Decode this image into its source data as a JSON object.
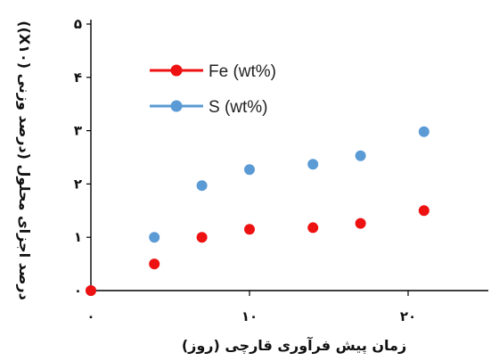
{
  "chart_data": {
    "type": "scatter",
    "xlabel": "زمان پیش فرآوری قارچی (روز)",
    "ylabel": "درصد اجزای محلول (درصد وزنی (X۱۰))",
    "x_ticks": [
      "۰",
      "۱۰",
      "۲۰"
    ],
    "y_ticks": [
      "۰",
      "۱",
      "۲",
      "۳",
      "۴",
      "۵"
    ],
    "xlim": [
      0,
      25
    ],
    "ylim": [
      0,
      5
    ],
    "grid": false,
    "legend_position": "top-left",
    "series": [
      {
        "name": "Fe (wt%)",
        "color": "#ee1111",
        "x": [
          0,
          4,
          7,
          10,
          14,
          17,
          21
        ],
        "y": [
          0,
          0.5,
          1.0,
          1.15,
          1.18,
          1.26,
          1.5
        ]
      },
      {
        "name": "S (wt%)",
        "color": "#5b9bd5",
        "x": [
          0,
          4,
          7,
          10,
          14,
          17,
          21
        ],
        "y": [
          0,
          1.0,
          1.97,
          2.27,
          2.37,
          2.53,
          2.98
        ]
      }
    ]
  }
}
